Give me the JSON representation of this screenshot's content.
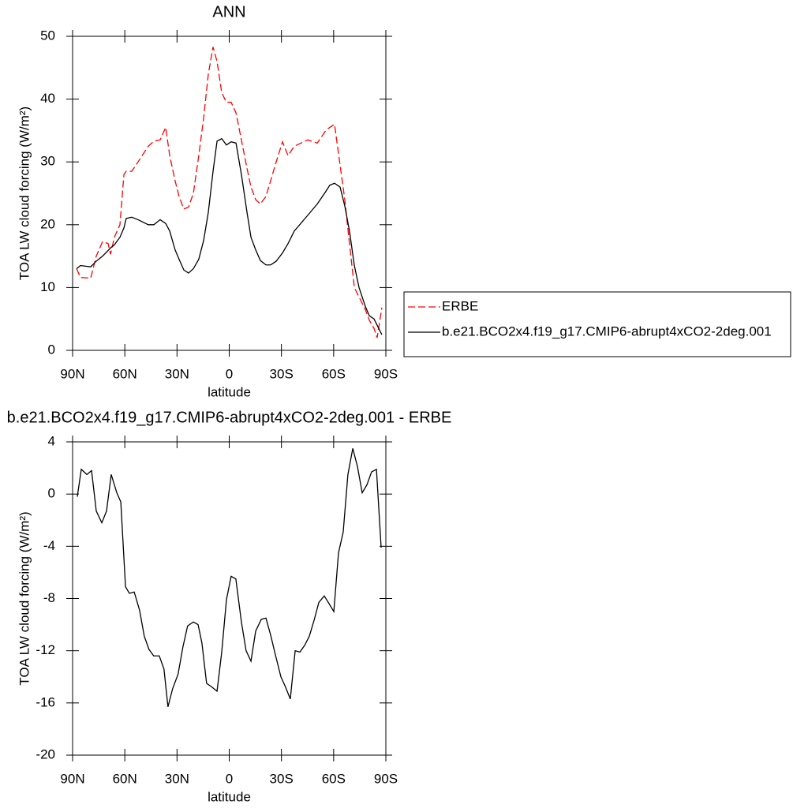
{
  "chart_data": [
    {
      "type": "line",
      "title": "ANN",
      "xlabel": "latitude",
      "ylabel": "TOA LW cloud forcing (W/m²)",
      "xlim": [
        90,
        -90
      ],
      "xticks": [
        {
          "value": 90,
          "label": "90N"
        },
        {
          "value": 60,
          "label": "60N"
        },
        {
          "value": 30,
          "label": "30N"
        },
        0,
        {
          "value": -30,
          "label": "30S"
        },
        {
          "value": -60,
          "label": "60S"
        },
        {
          "value": -90,
          "label": "90S"
        }
      ],
      "ylim": [
        0,
        50
      ],
      "yticks": [
        0,
        10,
        20,
        30,
        40,
        50
      ],
      "legend": "right",
      "x": [
        87.7,
        85.5,
        79.6,
        76.4,
        72.8,
        69.6,
        68.2,
        66,
        62.8,
        60.5,
        59.2,
        56,
        52.4,
        46.5,
        43.3,
        39.7,
        36.5,
        34.2,
        31.1,
        28.8,
        26.1,
        23.4,
        20.6,
        17.5,
        14.7,
        12,
        9.3,
        7,
        4.3,
        1.6,
        -1.1,
        -3.9,
        -7,
        -10.2,
        -12.5,
        -15.2,
        -17.9,
        -21.1,
        -23.8,
        -27,
        -30.6,
        -33.8,
        -37.4,
        -45.1,
        -50.6,
        -55.5,
        -57.8,
        -60.5,
        -63.7,
        -66.4,
        -69.1,
        -71.9,
        -74.6,
        -78.2,
        -80.5,
        -83.2,
        -85,
        -87.7
      ],
      "series": [
        {
          "name": "ERBE",
          "color": "#ff0000",
          "linestyle": "dashed",
          "values": [
            13,
            11.6,
            11.5,
            15,
            17.3,
            17,
            15.3,
            18,
            20,
            28,
            28.5,
            28.5,
            30,
            32.5,
            33.3,
            33.5,
            35.5,
            31,
            27,
            24.5,
            22.5,
            22.8,
            25,
            31,
            37,
            44,
            48.3,
            46,
            41,
            39.5,
            39.5,
            37.8,
            33.5,
            29,
            26,
            24,
            23.3,
            24.5,
            27,
            30,
            33.2,
            31,
            32.5,
            33.5,
            33,
            35,
            35.5,
            36,
            29.5,
            24,
            17,
            10,
            8.5,
            6.5,
            4.8,
            3.5,
            2,
            6.8
          ]
        },
        {
          "name": "b.e21.BCO2x4.f19_g17.CMIP6-abrupt4xCO2-2deg.001",
          "color": "#000000",
          "linestyle": "solid",
          "values": [
            13,
            13.5,
            13.3,
            14.2,
            15,
            15.9,
            16.3,
            16.8,
            18,
            19.5,
            21,
            21.2,
            20.8,
            20,
            20,
            20.8,
            20.2,
            19,
            16,
            14.5,
            12.8,
            12.3,
            13,
            14.5,
            17.5,
            22,
            28.5,
            33.3,
            33.7,
            32.7,
            33.2,
            33,
            28,
            22,
            18,
            16,
            14.3,
            13.6,
            13.6,
            14.2,
            15.5,
            17,
            19,
            21.5,
            23.3,
            25.3,
            26.3,
            26.6,
            26,
            23,
            19,
            13.5,
            10,
            7,
            5.5,
            5,
            4,
            2.5
          ]
        }
      ]
    },
    {
      "type": "line",
      "title": "b.e21.BCO2x4.f19_g17.CMIP6-abrupt4xCO2-2deg.001 - ERBE",
      "xlabel": "latitude",
      "ylabel": "TOA LW cloud forcing (W/m²)",
      "xlim": [
        90,
        -90
      ],
      "xticks": [
        {
          "value": 90,
          "label": "90N"
        },
        {
          "value": 60,
          "label": "60N"
        },
        {
          "value": 30,
          "label": "30N"
        },
        0,
        {
          "value": -30,
          "label": "30S"
        },
        {
          "value": -60,
          "label": "60S"
        },
        {
          "value": -90,
          "label": "90S"
        }
      ],
      "ylim": [
        -20,
        4
      ],
      "yticks": [
        -20,
        -16,
        -12,
        -8,
        -4,
        0,
        4
      ],
      "x": [
        87.3,
        85,
        81.8,
        79.1,
        76.4,
        73.2,
        70.5,
        67.8,
        64.6,
        62.3,
        59.6,
        57.4,
        54.6,
        51.5,
        48.8,
        46.1,
        43.4,
        40.2,
        37.5,
        35.2,
        32.5,
        29.4,
        26.6,
        23.9,
        20.6,
        17.9,
        15.7,
        13,
        9.8,
        7,
        4.3,
        1.6,
        -1.1,
        -3.8,
        -7,
        -9.7,
        -12.5,
        -15.2,
        -18.4,
        -21.1,
        -23.8,
        -26.5,
        -29.7,
        -32.4,
        -35.1,
        -37.9,
        -40.6,
        -43.3,
        -46,
        -48.7,
        -51.5,
        -54.6,
        -57.4,
        -60.1,
        -62.8,
        -65.5,
        -68.2,
        -71,
        -73.7,
        -76.4,
        -79.1,
        -81.8,
        -84.6,
        -87.3
      ],
      "series": [
        {
          "color": "#000000",
          "linestyle": "solid",
          "values": [
            -0.2,
            1.9,
            1.5,
            1.8,
            -1.3,
            -2.2,
            -1.3,
            1.5,
            0.1,
            -0.6,
            -7.1,
            -7.6,
            -7.5,
            -8.9,
            -10.9,
            -11.9,
            -12.4,
            -12.4,
            -13.4,
            -16.3,
            -14.9,
            -13.8,
            -11.7,
            -10.1,
            -9.8,
            -10,
            -11.4,
            -14.5,
            -14.8,
            -15.1,
            -12.1,
            -8.1,
            -6.3,
            -6.5,
            -9.8,
            -12,
            -12.8,
            -10.5,
            -9.6,
            -9.5,
            -10.8,
            -12.3,
            -14,
            -14.8,
            -15.7,
            -12,
            -12.1,
            -11.6,
            -10.9,
            -9.7,
            -8.3,
            -7.8,
            -8.4,
            -9,
            -4.5,
            -2.9,
            1.5,
            3.5,
            2.1,
            0.1,
            0.7,
            1.7,
            1.9,
            -4.1
          ]
        }
      ]
    }
  ]
}
